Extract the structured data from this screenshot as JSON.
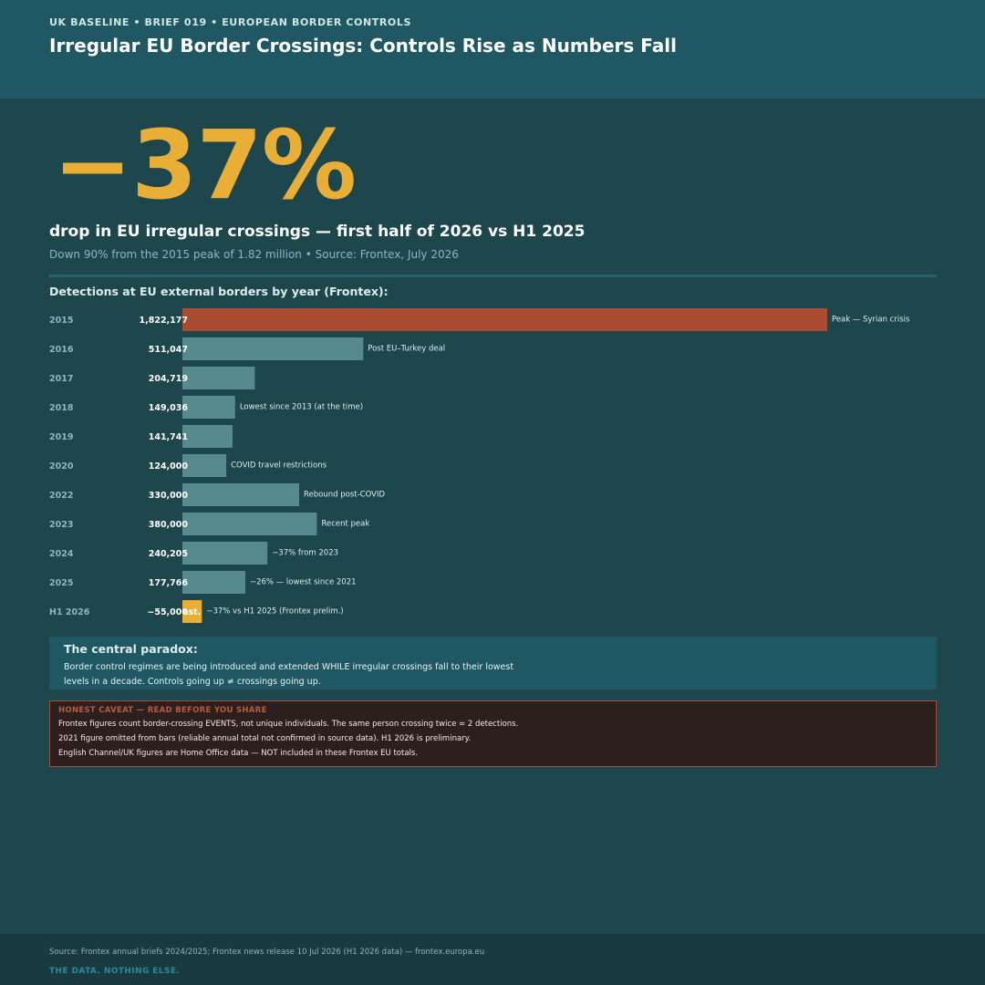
{
  "header": {
    "kicker": "UK BASELINE  •  BRIEF 019  •  EUROPEAN BORDER CONTROLS",
    "title": "Irregular EU Border Crossings: Controls Rise as Numbers Fall"
  },
  "headline_stat": {
    "value": "−37%",
    "label": "drop in EU irregular crossings — first half of 2026 vs H1 2025",
    "sub": "Down 90% from the 2015 peak of 1.82 million  •  Source: Frontex, July 2026"
  },
  "chart_data": {
    "type": "bar",
    "orientation": "horizontal",
    "title": "Detections at EU external borders by year (Frontex):",
    "categories": [
      "2015",
      "2016",
      "2017",
      "2018",
      "2019",
      "2020",
      "2022",
      "2023",
      "2024",
      "2025",
      "H1 2026"
    ],
    "values": [
      1822177,
      511047,
      204719,
      149036,
      141741,
      124000,
      330000,
      380000,
      240205,
      177766,
      55000
    ],
    "value_labels": [
      "1,822,177",
      "511,047",
      "204,719",
      "149,036",
      "141,741",
      "124,000",
      "330,000",
      "380,000",
      "240,205",
      "177,766",
      "~55,000"
    ],
    "annotations": [
      "Peak — Syrian crisis",
      "Post EU–Turkey deal",
      "",
      "Lowest since 2013 (at the time)",
      "",
      "COVID travel restrictions",
      "Rebound post-COVID",
      "Recent peak",
      "−37% from 2023",
      "−26% — lowest since 2021",
      "−37% vs H1 2025 (Frontex prelim.)"
    ],
    "estimate_tag": "est.",
    "colors": {
      "peak": "#a94c32",
      "default": "#578a8e",
      "estimate": "#e8ae36"
    },
    "xlim": [
      0,
      1822177
    ]
  },
  "paradox": {
    "title": "The central paradox:",
    "body": "Border control regimes are being introduced and extended WHILE irregular crossings fall to their lowest levels in a decade. Controls going up ≠ crossings going up."
  },
  "caveat": {
    "title": "HONEST CAVEAT — READ BEFORE YOU SHARE",
    "lines": [
      "Frontex figures count border-crossing EVENTS, not unique individuals. The same person crossing twice = 2 detections.",
      "2021 figure omitted from bars (reliable annual total not confirmed in source data). H1 2026 is preliminary.",
      "English Channel/UK figures are Home Office data — NOT included in these Frontex EU totals."
    ]
  },
  "footer": {
    "source": "Source: Frontex annual briefs 2024/2025; Frontex news release 10 Jul 2026 (H1 2026 data) — frontex.europa.eu",
    "tagline": "THE DATA. NOTHING ELSE."
  }
}
